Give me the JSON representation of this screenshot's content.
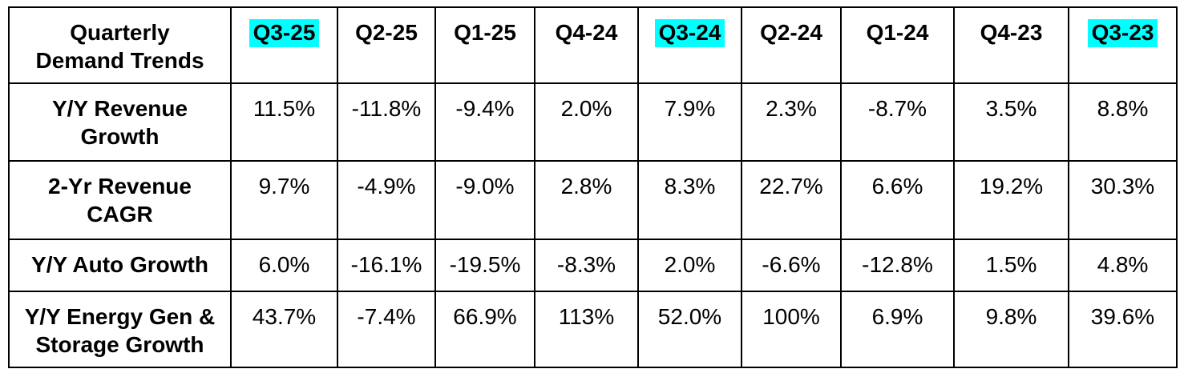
{
  "table": {
    "corner_label": "Quarterly Demand Trends",
    "highlight_color": "#00FFFF",
    "columns": [
      {
        "label": "Q3-25",
        "highlighted": true
      },
      {
        "label": "Q2-25",
        "highlighted": false
      },
      {
        "label": "Q1-25",
        "highlighted": false
      },
      {
        "label": "Q4-24",
        "highlighted": false
      },
      {
        "label": "Q3-24",
        "highlighted": true
      },
      {
        "label": "Q2-24",
        "highlighted": false
      },
      {
        "label": "Q1-24",
        "highlighted": false
      },
      {
        "label": "Q4-23",
        "highlighted": false
      },
      {
        "label": "Q3-23",
        "highlighted": true
      }
    ],
    "rows": [
      {
        "label": "Y/Y Revenue Growth",
        "values": [
          "11.5%",
          "-11.8%",
          "-9.4%",
          "2.0%",
          "7.9%",
          "2.3%",
          "-8.7%",
          "3.5%",
          "8.8%"
        ]
      },
      {
        "label": "2-Yr Revenue CAGR",
        "values": [
          "9.7%",
          "-4.9%",
          "-9.0%",
          "2.8%",
          "8.3%",
          "22.7%",
          "6.6%",
          "19.2%",
          "30.3%"
        ]
      },
      {
        "label": "Y/Y Auto Growth",
        "values": [
          "6.0%",
          "-16.1%",
          "-19.5%",
          "-8.3%",
          "2.0%",
          "-6.6%",
          "-12.8%",
          "1.5%",
          "4.8%"
        ]
      },
      {
        "label": "Y/Y Energy Gen & Storage Growth",
        "values": [
          "43.7%",
          "-7.4%",
          "66.9%",
          "113%",
          "52.0%",
          "100%",
          "6.9%",
          "9.8%",
          "39.6%"
        ]
      }
    ]
  },
  "chart_data": {
    "type": "table",
    "title": "Quarterly Demand Trends",
    "categories": [
      "Q3-25",
      "Q2-25",
      "Q1-25",
      "Q4-24",
      "Q3-24",
      "Q2-24",
      "Q1-24",
      "Q4-23",
      "Q3-23"
    ],
    "highlighted_categories": [
      "Q3-25",
      "Q3-24",
      "Q3-23"
    ],
    "unit": "%",
    "series": [
      {
        "name": "Y/Y Revenue Growth",
        "values": [
          11.5,
          -11.8,
          -9.4,
          2.0,
          7.9,
          2.3,
          -8.7,
          3.5,
          8.8
        ]
      },
      {
        "name": "2-Yr Revenue CAGR",
        "values": [
          9.7,
          -4.9,
          -9.0,
          2.8,
          8.3,
          22.7,
          6.6,
          19.2,
          30.3
        ]
      },
      {
        "name": "Y/Y Auto Growth",
        "values": [
          6.0,
          -16.1,
          -19.5,
          -8.3,
          2.0,
          -6.6,
          -12.8,
          1.5,
          4.8
        ]
      },
      {
        "name": "Y/Y Energy Gen & Storage Growth",
        "values": [
          43.7,
          -7.4,
          66.9,
          113,
          52.0,
          100,
          6.9,
          9.8,
          39.6
        ]
      }
    ]
  }
}
